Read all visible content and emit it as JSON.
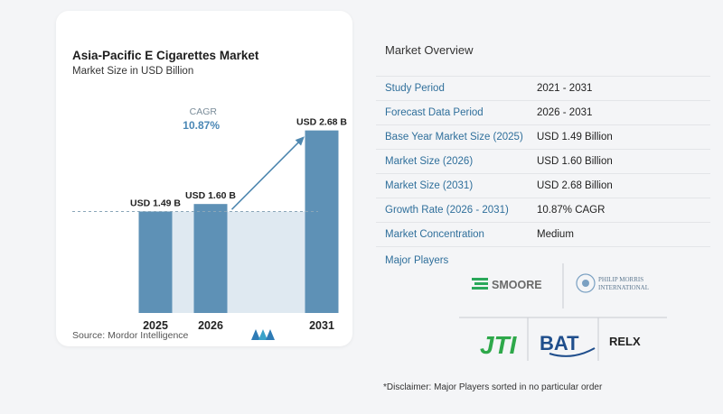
{
  "chart_data": {
    "type": "bar",
    "title": "Asia-Pacific E Cigarettes Market",
    "subtitle": "Market Size in USD Billion",
    "categories": [
      "2025",
      "2026",
      "2031"
    ],
    "values": [
      1.49,
      1.6,
      2.68
    ],
    "data_labels": [
      "USD 1.49 B",
      "USD 1.60 B",
      "USD 2.68 B"
    ],
    "ylim": [
      0,
      2.9
    ],
    "grid": false,
    "colors": {
      "bar": "#5e91b6",
      "bar_light": "#dfe9f1",
      "dashed": "#8aa6b8",
      "arrow": "#4f88b0",
      "cagr": "#4a87b5"
    },
    "cagr_label": "CAGR",
    "cagr_value": "10.87%"
  },
  "source_text": "Source: Mordor Intelligence",
  "overview": {
    "title": "Market Overview",
    "rows": [
      {
        "label": "Study Period",
        "value": "2021 - 2031"
      },
      {
        "label": "Forecast Data Period",
        "value": "2026 - 2031"
      },
      {
        "label": "Base Year Market Size (2025)",
        "value": "USD 1.49 Billion"
      },
      {
        "label": "Market Size (2026)",
        "value": "USD 1.60 Billion"
      },
      {
        "label": "Market Size (2031)",
        "value": "USD 2.68 Billion"
      },
      {
        "label": "Growth Rate (2026 - 2031)",
        "value": "10.87% CAGR"
      },
      {
        "label": "Market Concentration",
        "value": "Medium"
      }
    ],
    "players_title": "Major Players",
    "players": [
      "SMOORE",
      "PHILIP MORRIS",
      "INTERNATIONAL",
      "JTI",
      "BAT",
      "RELX"
    ]
  },
  "disclaimer": "*Disclaimer: Major Players sorted in no particular order"
}
